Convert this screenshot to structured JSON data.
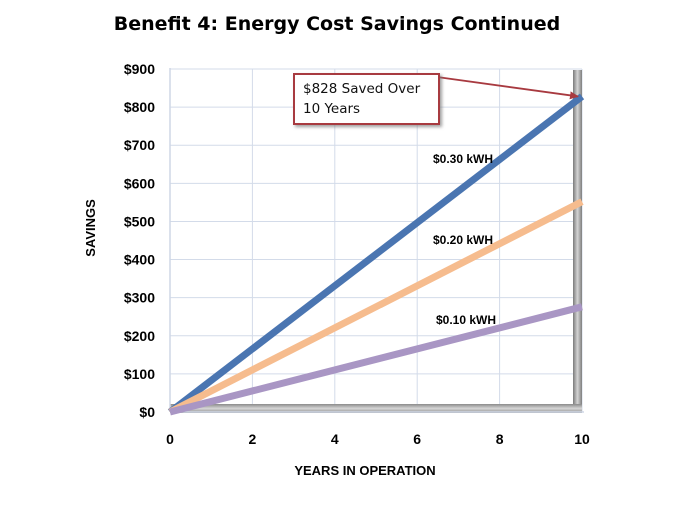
{
  "chart_data": {
    "type": "line",
    "title": "Benefit 4: Energy Cost Savings Continued",
    "xlabel": "YEARS IN OPERATION",
    "ylabel": "SAVINGS",
    "xlim": [
      0,
      10
    ],
    "ylim": [
      0,
      900
    ],
    "x_ticks": [
      0,
      2,
      4,
      6,
      8,
      10
    ],
    "x_tick_labels": [
      "0",
      "2",
      "4",
      "6",
      "8",
      "10"
    ],
    "y_ticks": [
      0,
      100,
      200,
      300,
      400,
      500,
      600,
      700,
      800,
      900
    ],
    "y_tick_labels": [
      "$0",
      "$100",
      "$200",
      "$300",
      "$400",
      "$500",
      "$600",
      "$700",
      "$800",
      "$900"
    ],
    "grid": true,
    "series": [
      {
        "name": "$0.30 kWH",
        "x": [
          0,
          10
        ],
        "values": [
          0,
          828
        ],
        "color": "#4a75b1"
      },
      {
        "name": "$0.20 kWH",
        "x": [
          0,
          10
        ],
        "values": [
          0,
          552
        ],
        "color": "#f6bc8e"
      },
      {
        "name": "$0.10 kWH",
        "x": [
          0,
          10
        ],
        "values": [
          0,
          276
        ],
        "color": "#a996c4"
      }
    ],
    "annotation": {
      "line1": "$828 Saved Over",
      "line2": "10 Years",
      "target_x": 10,
      "target_y": 828,
      "border_color": "#a83a40"
    }
  }
}
